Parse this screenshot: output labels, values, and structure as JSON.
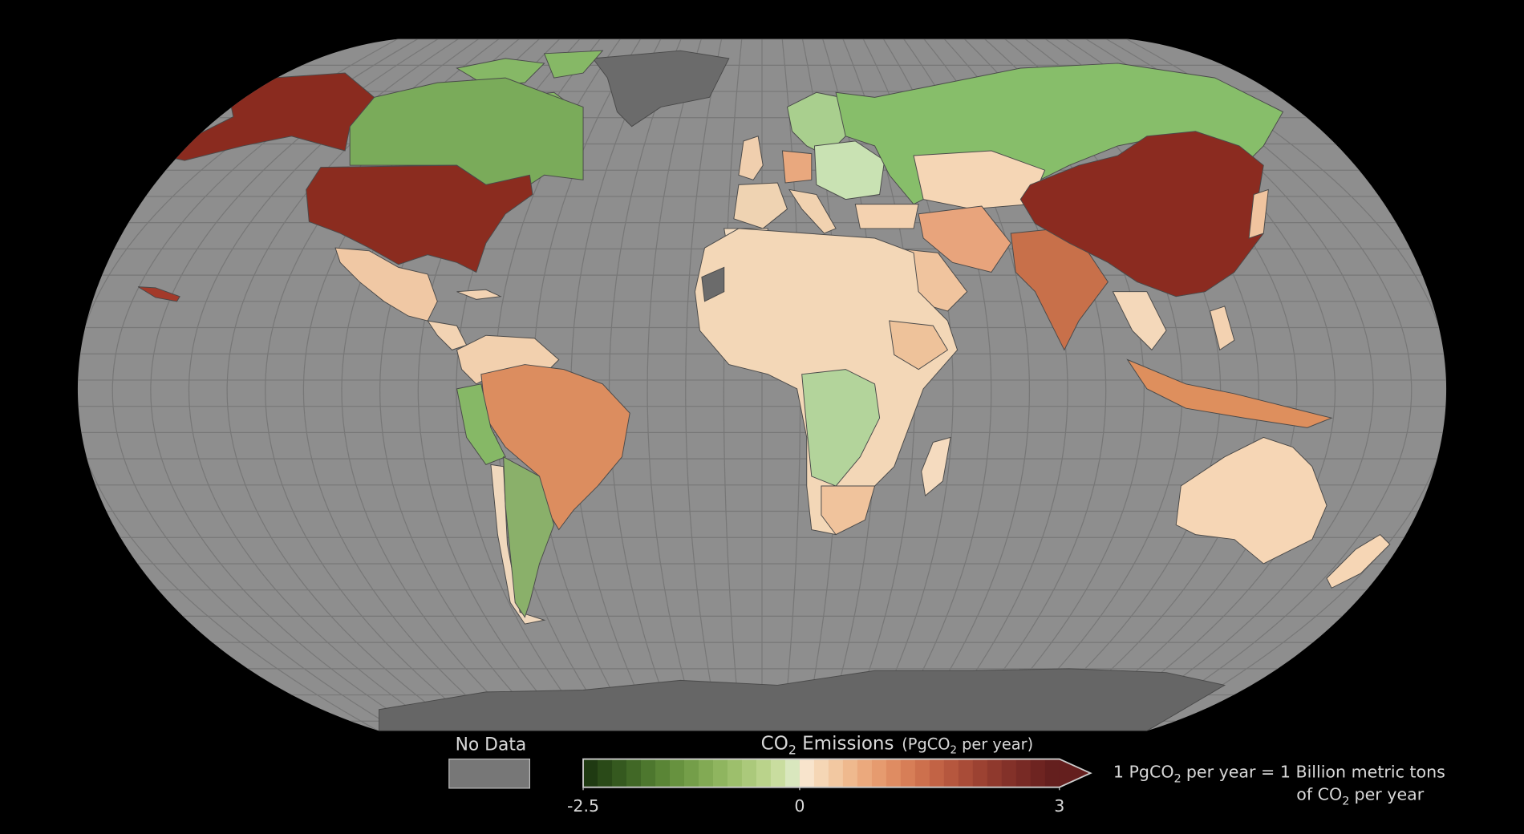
{
  "legend": {
    "no_data": "No Data",
    "title": [
      "CO",
      "2",
      "Emissions",
      "(PgCO",
      "2",
      "per year)"
    ],
    "colorbar": {
      "lim": [
        -2.5,
        3
      ],
      "ticks": [
        -2.5,
        0,
        3
      ],
      "colors": [
        "#1f3a12",
        "#2a4a18",
        "#35591f",
        "#416826",
        "#4d772e",
        "#5a8536",
        "#67923f",
        "#749e49",
        "#82aa54",
        "#8fb55f",
        "#9dbf6c",
        "#abc97b",
        "#bad38b",
        "#c9dd9f",
        "#d9e7be",
        "#f8e4cc",
        "#f5d6b5",
        "#f2c8a1",
        "#efb98e",
        "#eba97d",
        "#e69b6f",
        "#df8c62",
        "#d77e57",
        "#cd704d",
        "#c26345",
        "#b6573e",
        "#a94c38",
        "#9c4232",
        "#8f392d",
        "#833129",
        "#782a25",
        "#6e2421",
        "#641f1e"
      ]
    }
  },
  "note": {
    "line1": [
      "1 PgCO",
      "2",
      "per year = 1 Billion metric tons"
    ],
    "line2": [
      "of CO",
      "2",
      "per year"
    ]
  }
}
